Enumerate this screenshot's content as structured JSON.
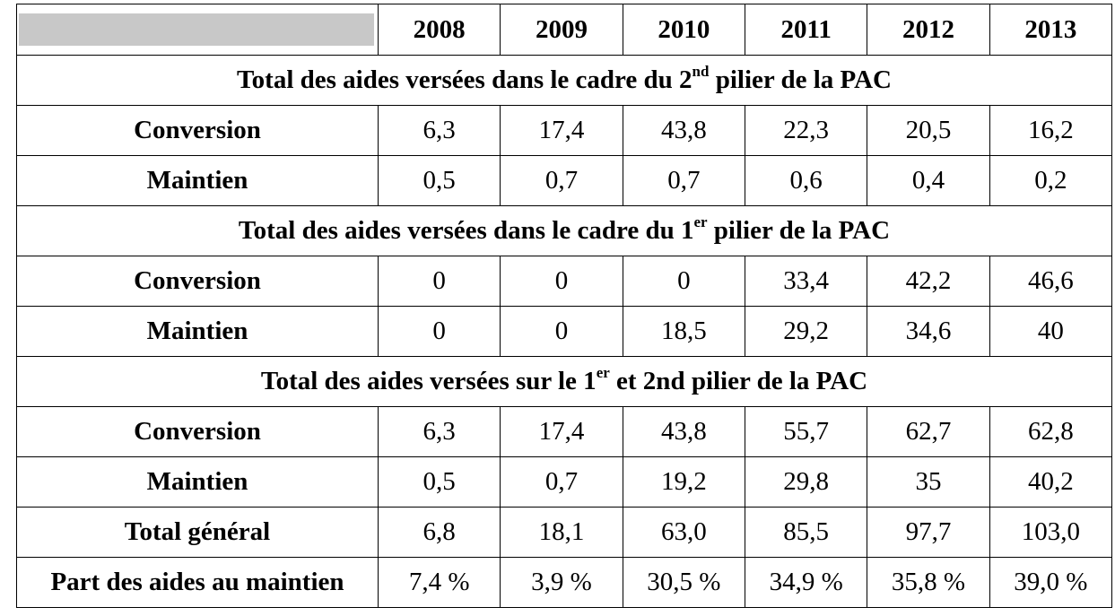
{
  "table": {
    "header": [
      "2008",
      "2009",
      "2010",
      "2011",
      "2012",
      "2013"
    ],
    "sections": [
      {
        "title": [
          "Total des aides versées dans le cadre du 2",
          "nd",
          " pilier de la PAC"
        ],
        "rows": [
          {
            "label": "Conversion",
            "cells": [
              "6,3",
              "17,4",
              "43,8",
              "22,3",
              "20,5",
              "16,2"
            ]
          },
          {
            "label": "Maintien",
            "cells": [
              "0,5",
              "0,7",
              "0,7",
              "0,6",
              "0,4",
              "0,2"
            ]
          }
        ]
      },
      {
        "title": [
          "Total des aides versées dans le cadre du 1",
          "er",
          " pilier de la PAC"
        ],
        "rows": [
          {
            "label": "Conversion",
            "cells": [
              "0",
              "0",
              "0",
              "33,4",
              "42,2",
              "46,6"
            ]
          },
          {
            "label": "Maintien",
            "cells": [
              "0",
              "0",
              "18,5",
              "29,2",
              "34,6",
              "40"
            ]
          }
        ]
      },
      {
        "title": [
          "Total des aides versées sur le 1",
          "er",
          " et 2nd pilier de la PAC"
        ],
        "rows": [
          {
            "label": "Conversion",
            "cells": [
              "6,3",
              "17,4",
              "43,8",
              "55,7",
              "62,7",
              "62,8"
            ]
          },
          {
            "label": "Maintien",
            "cells": [
              "0,5",
              "0,7",
              "19,2",
              "29,8",
              "35",
              "40,2"
            ]
          },
          {
            "label": "Total général",
            "cells": [
              "6,8",
              "18,1",
              "63,0",
              "85,5",
              "97,7",
              "103,0"
            ]
          },
          {
            "label": "Part des aides au maintien",
            "cells": [
              "7,4 %",
              "3,9 %",
              "30,5 %",
              "34,9 %",
              "35,8 %",
              "39,0 %"
            ]
          }
        ]
      }
    ]
  }
}
